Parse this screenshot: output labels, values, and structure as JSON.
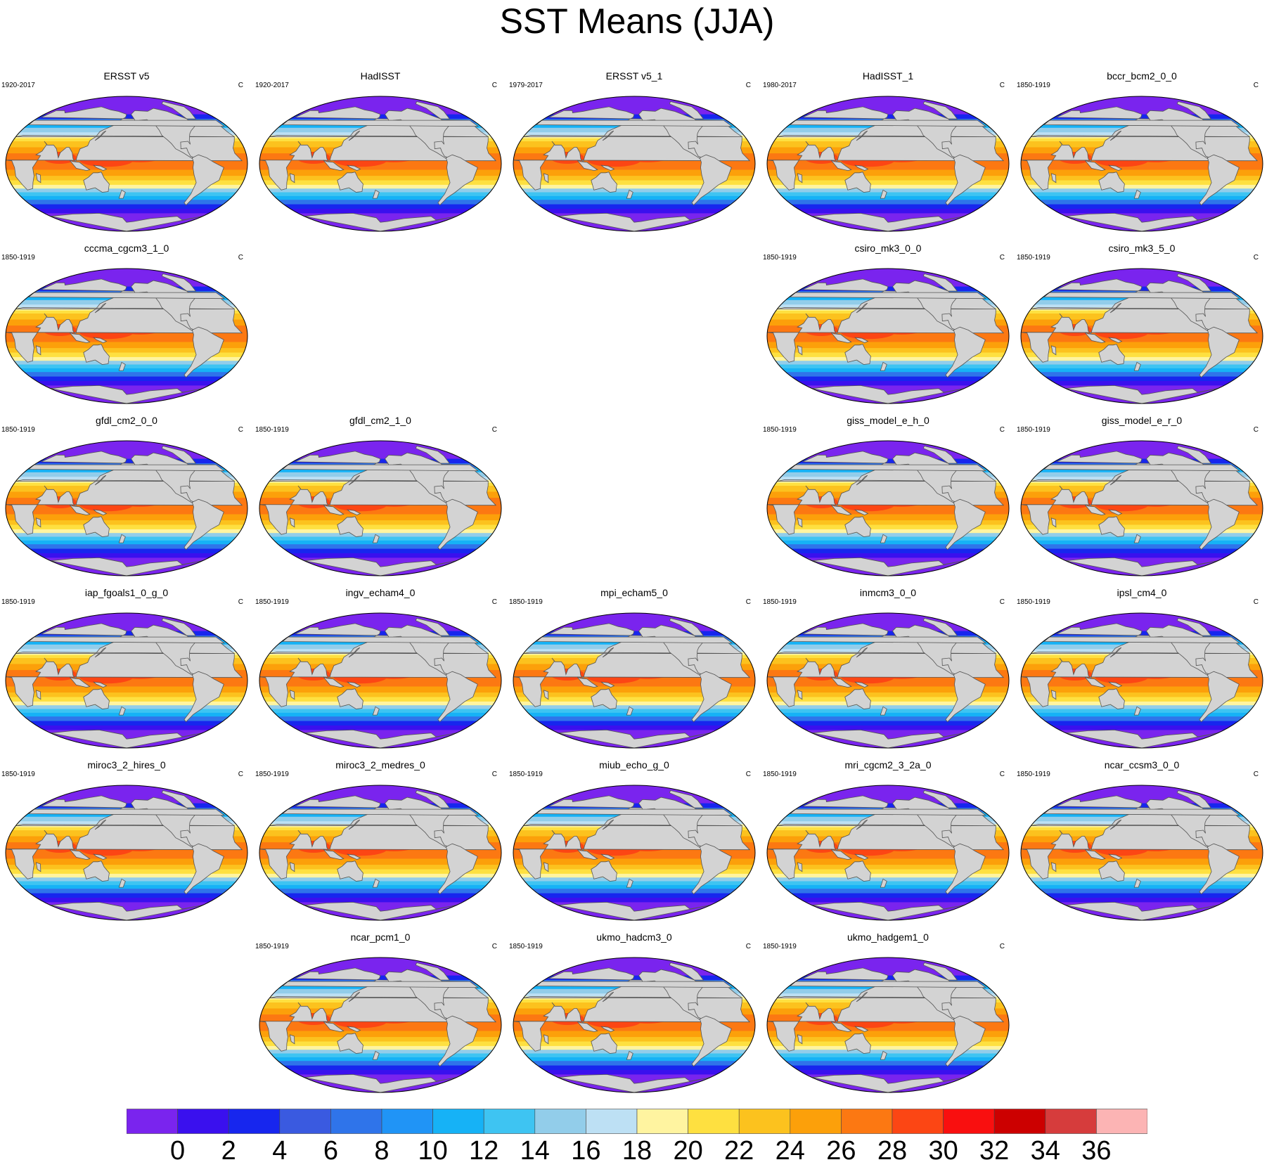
{
  "title": "SST Means (JJA)",
  "chart_data": {
    "type": "contour map panels",
    "title": "SST Means (JJA)",
    "units": "C",
    "colorbar": {
      "levels": [
        0,
        2,
        4,
        6,
        8,
        10,
        12,
        14,
        16,
        18,
        20,
        22,
        24,
        26,
        28,
        30,
        32,
        34,
        36
      ],
      "tick_labels": [
        "0",
        "2",
        "4",
        "6",
        "8",
        "10",
        "12",
        "14",
        "16",
        "18",
        "20",
        "22",
        "24",
        "26",
        "28",
        "30",
        "32",
        "34",
        "36"
      ],
      "colors": [
        "#7a24ee",
        "#3a10ee",
        "#1726ee",
        "#3a5ae0",
        "#2f74ea",
        "#2094f6",
        "#16b2f6",
        "#3ec4f2",
        "#92cdea",
        "#bde0f4",
        "#fff4a0",
        "#fee040",
        "#fcc21e",
        "#fca00a",
        "#fc7812",
        "#fc4614",
        "#f90f0f",
        "#cc0000",
        "#d63c3c",
        "#fcb4b4"
      ]
    },
    "land_color": "#d3d3d3",
    "panels": [
      {
        "name": "ERSST v5",
        "years": "1920-2017",
        "units": "C",
        "row": 0,
        "col": 0
      },
      {
        "name": "HadISST",
        "years": "1920-2017",
        "units": "C",
        "row": 0,
        "col": 1
      },
      {
        "name": "ERSST v5_1",
        "years": "1979-2017",
        "units": "C",
        "row": 0,
        "col": 2
      },
      {
        "name": "HadISST_1",
        "years": "1980-2017",
        "units": "C",
        "row": 0,
        "col": 3
      },
      {
        "name": "bccr_bcm2_0_0",
        "years": "1850-1919",
        "units": "C",
        "row": 0,
        "col": 4
      },
      {
        "name": "cccma_cgcm3_1_0",
        "years": "1850-1919",
        "units": "C",
        "row": 1,
        "col": 0
      },
      {
        "name": "csiro_mk3_0_0",
        "years": "1850-1919",
        "units": "C",
        "row": 1,
        "col": 3
      },
      {
        "name": "csiro_mk3_5_0",
        "years": "1850-1919",
        "units": "C",
        "row": 1,
        "col": 4
      },
      {
        "name": "gfdl_cm2_0_0",
        "years": "1850-1919",
        "units": "C",
        "row": 2,
        "col": 0
      },
      {
        "name": "gfdl_cm2_1_0",
        "years": "1850-1919",
        "units": "C",
        "row": 2,
        "col": 1
      },
      {
        "name": "giss_model_e_h_0",
        "years": "1850-1919",
        "units": "C",
        "row": 2,
        "col": 3
      },
      {
        "name": "giss_model_e_r_0",
        "years": "1850-1919",
        "units": "C",
        "row": 2,
        "col": 4
      },
      {
        "name": "iap_fgoals1_0_g_0",
        "years": "1850-1919",
        "units": "C",
        "row": 3,
        "col": 0
      },
      {
        "name": "ingv_echam4_0",
        "years": "1850-1919",
        "units": "C",
        "row": 3,
        "col": 1
      },
      {
        "name": "mpi_echam5_0",
        "years": "1850-1919",
        "units": "C",
        "row": 3,
        "col": 2
      },
      {
        "name": "inmcm3_0_0",
        "years": "1850-1919",
        "units": "C",
        "row": 3,
        "col": 3
      },
      {
        "name": "ipsl_cm4_0",
        "years": "1850-1919",
        "units": "C",
        "row": 3,
        "col": 4
      },
      {
        "name": "miroc3_2_hires_0",
        "years": "1850-1919",
        "units": "C",
        "row": 4,
        "col": 0
      },
      {
        "name": "miroc3_2_medres_0",
        "years": "1850-1919",
        "units": "C",
        "row": 4,
        "col": 1
      },
      {
        "name": "miub_echo_g_0",
        "years": "1850-1919",
        "units": "C",
        "row": 4,
        "col": 2
      },
      {
        "name": "mri_cgcm2_3_2a_0",
        "years": "1850-1919",
        "units": "C",
        "row": 4,
        "col": 3
      },
      {
        "name": "ncar_ccsm3_0_0",
        "years": "1850-1919",
        "units": "C",
        "row": 4,
        "col": 4
      },
      {
        "name": "ncar_pcm1_0",
        "years": "1850-1919",
        "units": "C",
        "row": 5,
        "col": 1
      },
      {
        "name": "ukmo_hadcm3_0",
        "years": "1850-1919",
        "units": "C",
        "row": 5,
        "col": 2
      },
      {
        "name": "ukmo_hadgem1_0",
        "years": "1850-1919",
        "units": "C",
        "row": 5,
        "col": 3
      }
    ]
  }
}
